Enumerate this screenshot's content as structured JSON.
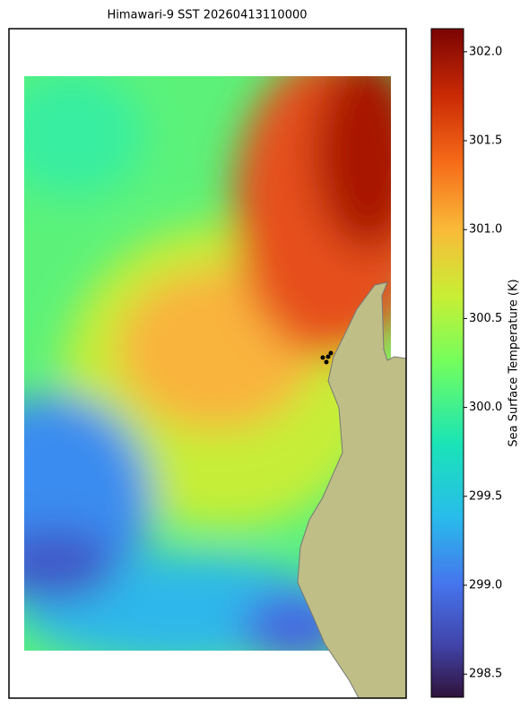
{
  "title": "Himawari-9 SST 20260413110000",
  "colorbar": {
    "label": "Sea Surface Temperature (K)",
    "lim": [
      298.37,
      302.13
    ],
    "ticks": [
      {
        "value": 298.5,
        "label": "298.5"
      },
      {
        "value": 299,
        "label": "299.0"
      },
      {
        "value": 299.5,
        "label": "299.5"
      },
      {
        "value": 300,
        "label": "300.0"
      },
      {
        "value": 300.5,
        "label": "300.5"
      },
      {
        "value": 301,
        "label": "301.0"
      },
      {
        "value": 301.5,
        "label": "301.5"
      },
      {
        "value": 302,
        "label": "302.0"
      }
    ]
  }
}
